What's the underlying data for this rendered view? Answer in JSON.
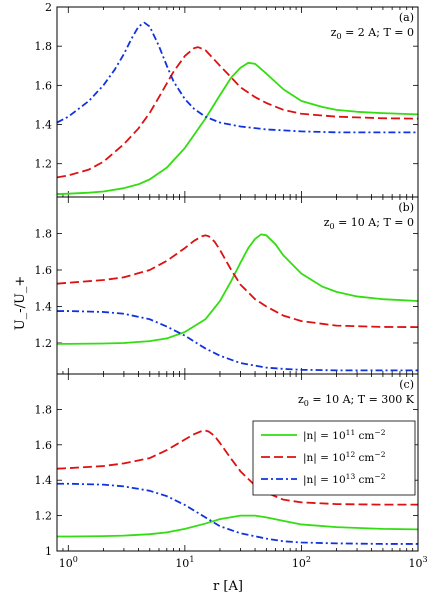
{
  "figure": {
    "ylabel": "U_-/U_+",
    "xlabel": "r [A]"
  },
  "x_ticks": [
    {
      "value": 1,
      "base": "10",
      "exp": "0"
    },
    {
      "value": 10,
      "base": "10",
      "exp": "1"
    },
    {
      "value": 100,
      "base": "10",
      "exp": "2"
    },
    {
      "value": 1000,
      "base": "10",
      "exp": "3"
    }
  ],
  "legend": {
    "entries": [
      {
        "prefix": "|n| = 10",
        "exp": "11",
        "suffix": " cm",
        "unit_exp": "−2",
        "color": "#33dd11",
        "dash": "solid"
      },
      {
        "prefix": "|n| = 10",
        "exp": "12",
        "suffix": " cm",
        "unit_exp": "−2",
        "color": "#dd1111",
        "dash": "dashed"
      },
      {
        "prefix": "|n| = 10",
        "exp": "13",
        "suffix": " cm",
        "unit_exp": "−2",
        "color": "#1133dd",
        "dash": "dashdot"
      }
    ]
  },
  "chart_data": [
    {
      "type": "line",
      "panel_label": "(a)",
      "annotation": {
        "z": "z",
        "sub": "0",
        "text": " = 2 A; T = 0"
      },
      "xscale": "log",
      "xlim": [
        0.8,
        1000
      ],
      "ylim": [
        1.03,
        2.0
      ],
      "yticks": [
        1.2,
        1.4,
        1.6,
        1.8,
        2.0
      ],
      "ytick_labels": [
        "1.2",
        "1.4",
        "1.6",
        "1.8",
        "2"
      ],
      "series": [
        {
          "color": "#33dd11",
          "dash": "solid",
          "x": [
            0.8,
            1,
            1.5,
            2,
            3,
            4,
            5,
            7,
            10,
            15,
            20,
            25,
            30,
            35,
            40,
            50,
            70,
            100,
            150,
            200,
            300,
            500,
            700,
            1000
          ],
          "y": [
            1.045,
            1.047,
            1.052,
            1.058,
            1.075,
            1.095,
            1.12,
            1.18,
            1.28,
            1.43,
            1.55,
            1.64,
            1.69,
            1.715,
            1.71,
            1.66,
            1.58,
            1.52,
            1.49,
            1.475,
            1.465,
            1.458,
            1.455,
            1.452
          ]
        },
        {
          "color": "#dd1111",
          "dash": "dashed",
          "x": [
            0.8,
            1,
            1.5,
            2,
            3,
            4,
            5,
            6,
            7,
            8,
            10,
            12,
            13,
            15,
            20,
            25,
            30,
            40,
            50,
            70,
            100,
            200,
            500,
            1000
          ],
          "y": [
            1.13,
            1.14,
            1.17,
            1.21,
            1.3,
            1.38,
            1.46,
            1.54,
            1.61,
            1.67,
            1.75,
            1.79,
            1.795,
            1.78,
            1.7,
            1.64,
            1.59,
            1.54,
            1.51,
            1.475,
            1.455,
            1.44,
            1.432,
            1.43
          ]
        },
        {
          "color": "#1133dd",
          "dash": "dashdot",
          "x": [
            0.8,
            1,
            1.5,
            2,
            2.5,
            3,
            3.5,
            4,
            4.5,
            5,
            6,
            7,
            8,
            10,
            12,
            15,
            20,
            30,
            50,
            100,
            200,
            500,
            1000
          ],
          "y": [
            1.41,
            1.44,
            1.52,
            1.6,
            1.68,
            1.76,
            1.84,
            1.9,
            1.92,
            1.9,
            1.8,
            1.7,
            1.62,
            1.53,
            1.48,
            1.44,
            1.41,
            1.39,
            1.375,
            1.365,
            1.36,
            1.36,
            1.36
          ]
        }
      ]
    },
    {
      "type": "line",
      "panel_label": "(b)",
      "annotation": {
        "z": "z",
        "sub": "0",
        "text": " = 10 A; T = 0"
      },
      "xscale": "log",
      "xlim": [
        0.8,
        1000
      ],
      "ylim": [
        1.03,
        2.0
      ],
      "yticks": [
        1.2,
        1.4,
        1.6,
        1.8
      ],
      "ytick_labels": [
        "1.2",
        "1.4",
        "1.6",
        "1.8"
      ],
      "series": [
        {
          "color": "#33dd11",
          "dash": "solid",
          "x": [
            0.8,
            1,
            2,
            3,
            5,
            7,
            10,
            15,
            20,
            25,
            30,
            35,
            40,
            45,
            50,
            60,
            70,
            100,
            150,
            200,
            300,
            500,
            1000
          ],
          "y": [
            1.195,
            1.195,
            1.197,
            1.2,
            1.21,
            1.225,
            1.26,
            1.33,
            1.43,
            1.54,
            1.64,
            1.72,
            1.77,
            1.795,
            1.79,
            1.74,
            1.68,
            1.58,
            1.51,
            1.48,
            1.455,
            1.44,
            1.43
          ]
        },
        {
          "color": "#dd1111",
          "dash": "dashed",
          "x": [
            0.8,
            1,
            2,
            3,
            5,
            7,
            10,
            12,
            14,
            15,
            16,
            18,
            20,
            25,
            30,
            40,
            50,
            70,
            100,
            200,
            500,
            1000
          ],
          "y": [
            1.525,
            1.53,
            1.545,
            1.56,
            1.6,
            1.65,
            1.72,
            1.76,
            1.785,
            1.79,
            1.785,
            1.755,
            1.71,
            1.6,
            1.52,
            1.44,
            1.4,
            1.35,
            1.32,
            1.295,
            1.288,
            1.287
          ]
        },
        {
          "color": "#1133dd",
          "dash": "dashdot",
          "x": [
            0.8,
            1,
            2,
            3,
            5,
            7,
            10,
            15,
            20,
            30,
            50,
            70,
            100,
            200,
            500,
            1000
          ],
          "y": [
            1.375,
            1.375,
            1.37,
            1.36,
            1.33,
            1.29,
            1.24,
            1.17,
            1.13,
            1.09,
            1.065,
            1.058,
            1.053,
            1.05,
            1.05,
            1.05
          ]
        }
      ]
    },
    {
      "type": "line",
      "panel_label": "(c)",
      "annotation": {
        "z": "z",
        "sub": "0",
        "text": " = 10 A; T = 300 K"
      },
      "xscale": "log",
      "xlim": [
        0.8,
        1000
      ],
      "ylim": [
        1.0,
        2.0
      ],
      "yticks": [
        1.0,
        1.2,
        1.4,
        1.6,
        1.8
      ],
      "ytick_labels": [
        "1",
        "1.2",
        "1.4",
        "1.6",
        "1.8"
      ],
      "series": [
        {
          "color": "#33dd11",
          "dash": "solid",
          "x": [
            0.8,
            1,
            2,
            3,
            5,
            7,
            10,
            15,
            20,
            30,
            40,
            50,
            70,
            100,
            200,
            500,
            1000
          ],
          "y": [
            1.082,
            1.082,
            1.084,
            1.087,
            1.095,
            1.105,
            1.125,
            1.155,
            1.18,
            1.2,
            1.2,
            1.19,
            1.17,
            1.15,
            1.135,
            1.125,
            1.122
          ]
        },
        {
          "color": "#dd1111",
          "dash": "dashed",
          "x": [
            0.8,
            1,
            2,
            3,
            5,
            7,
            10,
            12,
            14,
            15,
            16,
            18,
            20,
            25,
            30,
            40,
            50,
            70,
            100,
            200,
            500,
            1000
          ],
          "y": [
            1.465,
            1.468,
            1.48,
            1.495,
            1.525,
            1.57,
            1.63,
            1.66,
            1.678,
            1.68,
            1.675,
            1.65,
            1.61,
            1.52,
            1.45,
            1.37,
            1.33,
            1.29,
            1.275,
            1.265,
            1.262,
            1.262
          ]
        },
        {
          "color": "#1133dd",
          "dash": "dashdot",
          "x": [
            0.8,
            1,
            2,
            3,
            5,
            7,
            10,
            15,
            20,
            30,
            50,
            70,
            100,
            200,
            500,
            1000
          ],
          "y": [
            1.38,
            1.38,
            1.375,
            1.365,
            1.34,
            1.31,
            1.26,
            1.19,
            1.14,
            1.1,
            1.07,
            1.055,
            1.048,
            1.043,
            1.04,
            1.04
          ]
        }
      ]
    }
  ]
}
